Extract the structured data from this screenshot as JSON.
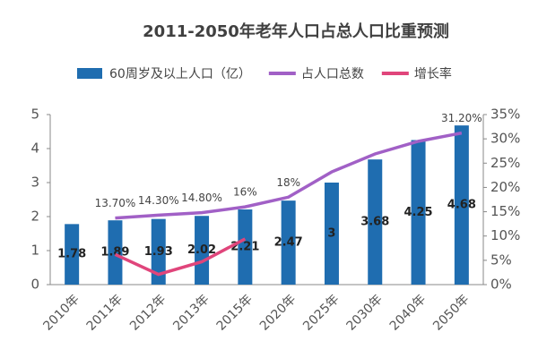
{
  "chart_data": {
    "type": "bar-line",
    "title": "2011-2050年老年人口占总人口比重预测",
    "categories": [
      "2010年",
      "2011年",
      "2012年",
      "2013年",
      "2015年",
      "2020年",
      "2025年",
      "2030年",
      "2040年",
      "2050年"
    ],
    "series": [
      {
        "name": "60周岁及以上人口（亿）",
        "type": "bar",
        "color": "#1f6db0",
        "values": [
          1.78,
          1.89,
          1.93,
          2.02,
          2.21,
          2.47,
          3,
          3.68,
          4.25,
          4.68
        ]
      },
      {
        "name": "占人口总数",
        "type": "line",
        "axis": "y2",
        "color": "#a160c6",
        "values": [
          null,
          13.7,
          14.3,
          14.8,
          16,
          18,
          23.2,
          26.9,
          29.5,
          31.2
        ],
        "value_labels": [
          null,
          "13.70%",
          "14.30%",
          "14.80%",
          "16%",
          "18%",
          null,
          null,
          null,
          "31.20%"
        ]
      },
      {
        "name": "增长率",
        "type": "line",
        "axis": "y2",
        "color": "#e0457b",
        "values": [
          null,
          6.2,
          2.1,
          4.7,
          9.4,
          null,
          null,
          null,
          null,
          null
        ]
      }
    ],
    "ylim": [
      0,
      5
    ],
    "yticks": [
      0,
      1,
      2,
      3,
      4,
      5
    ],
    "y2lim": [
      0,
      35
    ],
    "y2ticks": [
      {
        "value": 0,
        "label": "0%"
      },
      {
        "value": 5,
        "label": "5%"
      },
      {
        "value": 10,
        "label": "10%"
      },
      {
        "value": 15,
        "label": "15%"
      },
      {
        "value": 20,
        "label": "20%"
      },
      {
        "value": 25,
        "label": "25%"
      },
      {
        "value": 30,
        "label": "30%"
      },
      {
        "value": 35,
        "label": "35%"
      }
    ]
  }
}
